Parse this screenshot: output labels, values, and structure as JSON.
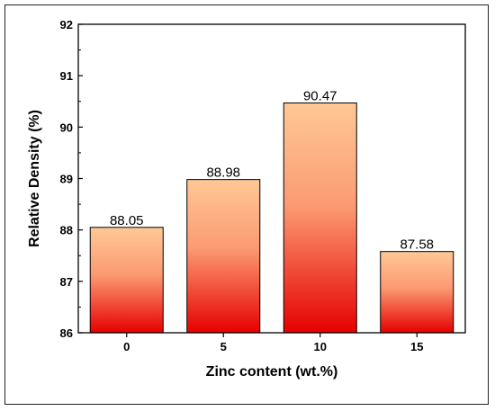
{
  "chart_data": {
    "type": "bar",
    "categories": [
      "0",
      "5",
      "10",
      "15"
    ],
    "values": [
      88.05,
      88.98,
      90.47,
      87.58
    ],
    "data_labels": [
      "88.05",
      "88.98",
      "90.47",
      "87.58"
    ],
    "xlabel": "Zinc content (wt.%)",
    "ylabel": "Relative Density (%)",
    "ylim": [
      86,
      92
    ],
    "yticks": [
      "86",
      "87",
      "88",
      "89",
      "90",
      "91",
      "92"
    ],
    "grid": false,
    "bar_gradient": {
      "top": "#ffc896",
      "bottom": "#e60000"
    }
  }
}
